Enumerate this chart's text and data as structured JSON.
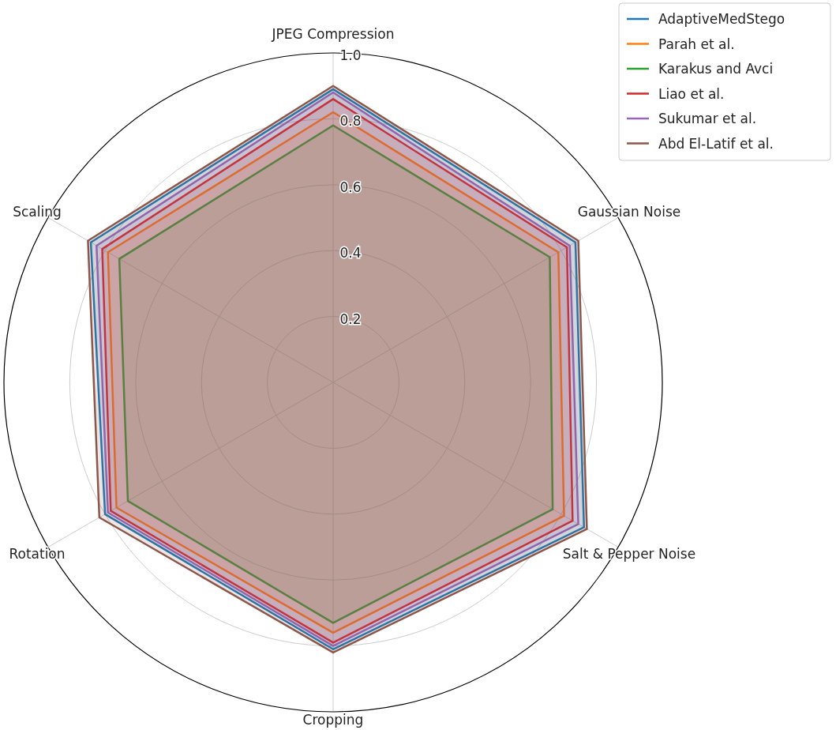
{
  "chart_data": {
    "type": "radar",
    "categories": [
      "JPEG Compression",
      "Gaussian Noise",
      "Salt & Pepper Noise",
      "Cropping",
      "Rotation",
      "Scaling"
    ],
    "ylim": [
      0,
      1.0
    ],
    "yticks": [
      0.2,
      0.4,
      0.6,
      0.8,
      {
        "value": 1.0,
        "label": "1.0"
      }
    ],
    "grid": true,
    "legend": "top right",
    "series": [
      {
        "name": "AdaptiveMedStego",
        "color": "#1f77b4",
        "values": [
          0.89,
          0.85,
          0.88,
          0.81,
          0.8,
          0.85
        ]
      },
      {
        "name": "Parah et al.",
        "color": "#ff7f0e",
        "values": [
          0.82,
          0.79,
          0.81,
          0.76,
          0.76,
          0.79
        ]
      },
      {
        "name": "Karakus and Avci",
        "color": "#2ca02c",
        "values": [
          0.78,
          0.76,
          0.77,
          0.73,
          0.72,
          0.75
        ]
      },
      {
        "name": "Liao et al.",
        "color": "#d62728",
        "values": [
          0.86,
          0.82,
          0.84,
          0.79,
          0.78,
          0.81
        ]
      },
      {
        "name": "Sukumar et al.",
        "color": "#9467bd",
        "values": [
          0.88,
          0.83,
          0.86,
          0.8,
          0.79,
          0.83
        ]
      },
      {
        "name": "Abd El-Latif et al.",
        "color": "#8c564b",
        "values": [
          0.9,
          0.86,
          0.89,
          0.82,
          0.82,
          0.86
        ]
      }
    ]
  }
}
